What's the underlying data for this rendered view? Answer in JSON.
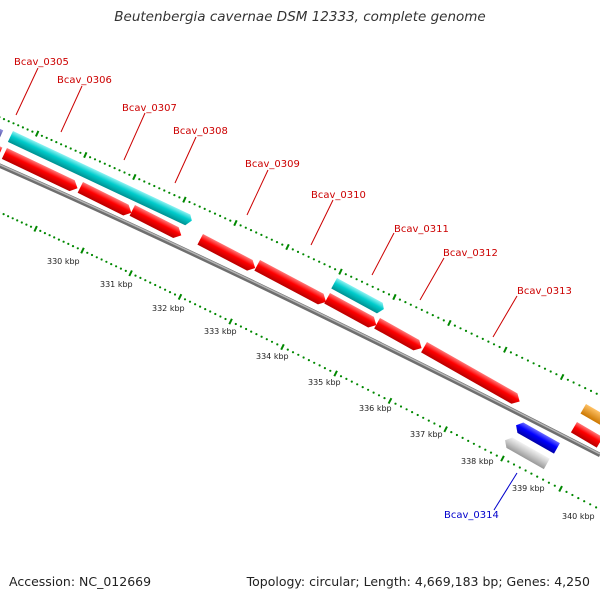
{
  "title": "Beutenbergia cavernae DSM 12333, complete genome",
  "footer": {
    "accession": "Accession: NC_012669",
    "info": "Topology: circular; Length: 4,669,183 bp; Genes: 4,250"
  },
  "colors": {
    "forward_cds": "#ff0000",
    "reverse_cds": "#ff0000",
    "rna": "#00cccc",
    "other_blue": "#0000ff",
    "pseudo": "#cccccc",
    "partial_purple": "#5555aa",
    "partial_orange": "#ff9900",
    "backbone": "#888888",
    "ticks": "#008800",
    "label_forward": "#cc0000",
    "label_other": "#0000cc"
  },
  "ticks": [
    "330 kbp",
    "331 kbp",
    "332 kbp",
    "333 kbp",
    "334 kbp",
    "335 kbp",
    "336 kbp",
    "337 kbp",
    "338 kbp",
    "339 kbp",
    "340 kbp"
  ],
  "gene_labels": [
    "Bcav_0305",
    "Bcav_0306",
    "Bcav_0307",
    "Bcav_0308",
    "Bcav_0309",
    "Bcav_0310",
    "Bcav_0311",
    "Bcav_0312",
    "Bcav_0313",
    "Bcav_0314"
  ]
}
